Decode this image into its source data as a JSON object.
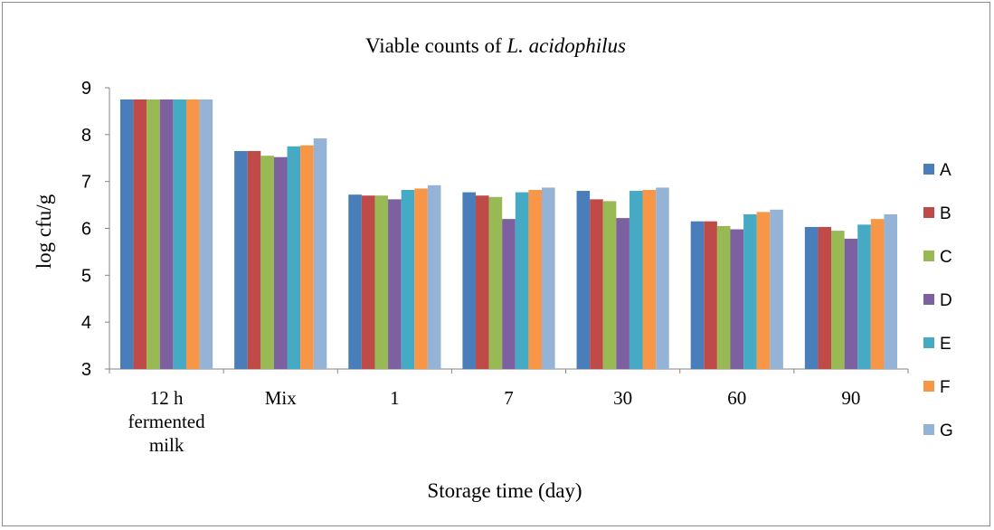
{
  "chart_data": {
    "type": "bar",
    "title_prefix": "Viable counts of ",
    "title_italic": "L. acidophilus",
    "xlabel": "Storage time (day)",
    "ylabel": "log cfu/g",
    "ylim": [
      3,
      9
    ],
    "yticks": [
      "3",
      "4",
      "5",
      "6",
      "7",
      "8",
      "9"
    ],
    "categories": [
      [
        "12 h",
        "fermented",
        "milk"
      ],
      [
        "Mix"
      ],
      [
        "1"
      ],
      [
        "7"
      ],
      [
        "30"
      ],
      [
        "60"
      ],
      [
        "90"
      ]
    ],
    "grid": false,
    "legend_position": "right",
    "series": [
      {
        "name": "A",
        "color": "#4a7ebb",
        "values": [
          8.75,
          7.65,
          6.72,
          6.77,
          6.8,
          6.15,
          6.03
        ]
      },
      {
        "name": "B",
        "color": "#be4b48",
        "values": [
          8.75,
          7.65,
          6.7,
          6.7,
          6.62,
          6.15,
          6.03
        ]
      },
      {
        "name": "C",
        "color": "#98b954",
        "values": [
          8.75,
          7.55,
          6.7,
          6.67,
          6.58,
          6.05,
          5.95
        ]
      },
      {
        "name": "D",
        "color": "#7d60a0",
        "values": [
          8.75,
          7.52,
          6.62,
          6.2,
          6.22,
          5.98,
          5.78
        ]
      },
      {
        "name": "E",
        "color": "#46aac5",
        "values": [
          8.75,
          7.75,
          6.82,
          6.77,
          6.8,
          6.3,
          6.08
        ]
      },
      {
        "name": "F",
        "color": "#f79646",
        "values": [
          8.75,
          7.77,
          6.85,
          6.82,
          6.82,
          6.35,
          6.2
        ]
      },
      {
        "name": "G",
        "color": "#95b3d7",
        "values": [
          8.75,
          7.92,
          6.92,
          6.87,
          6.87,
          6.4,
          6.3
        ]
      }
    ]
  }
}
